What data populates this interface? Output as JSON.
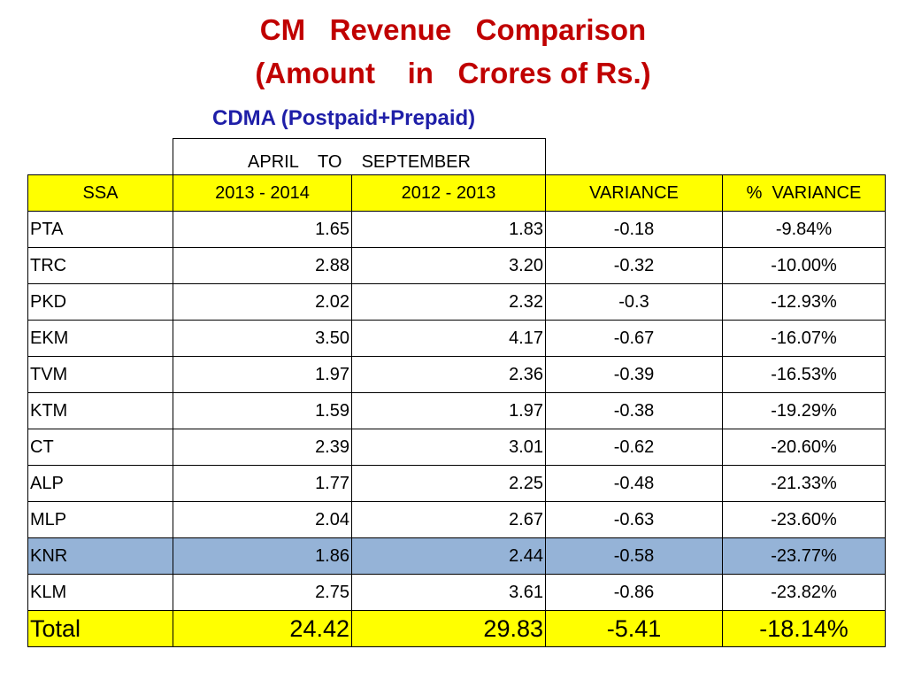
{
  "title": {
    "line1": "CM   Revenue   Comparison",
    "line2": "(Amount    in   Crores of Rs.)"
  },
  "subtitle": "CDMA (Postpaid+Prepaid)",
  "table": {
    "period_label": "APRIL    TO    SEPTEMBER",
    "headers": {
      "ssa": "SSA",
      "y1": "2013 - 2014",
      "y2": "2012 - 2013",
      "variance": "VARIANCE",
      "pct_variance": "%  VARIANCE"
    },
    "rows": [
      {
        "ssa": "PTA",
        "y1": "1.65",
        "y2": "1.83",
        "variance": "-0.18",
        "pct": "-9.84%"
      },
      {
        "ssa": "TRC",
        "y1": "2.88",
        "y2": "3.20",
        "variance": "-0.32",
        "pct": "-10.00%"
      },
      {
        "ssa": "PKD",
        "y1": "2.02",
        "y2": "2.32",
        "variance": "-0.3",
        "pct": "-12.93%"
      },
      {
        "ssa": "EKM",
        "y1": "3.50",
        "y2": "4.17",
        "variance": "-0.67",
        "pct": "-16.07%"
      },
      {
        "ssa": "TVM",
        "y1": "1.97",
        "y2": "2.36",
        "variance": "-0.39",
        "pct": "-16.53%"
      },
      {
        "ssa": "KTM",
        "y1": "1.59",
        "y2": "1.97",
        "variance": "-0.38",
        "pct": "-19.29%"
      },
      {
        "ssa": "CT",
        "y1": "2.39",
        "y2": "3.01",
        "variance": "-0.62",
        "pct": "-20.60%"
      },
      {
        "ssa": "ALP",
        "y1": "1.77",
        "y2": "2.25",
        "variance": "-0.48",
        "pct": "-21.33%"
      },
      {
        "ssa": "MLP",
        "y1": "2.04",
        "y2": "2.67",
        "variance": "-0.63",
        "pct": "-23.60%"
      },
      {
        "ssa": "KNR",
        "y1": "1.86",
        "y2": "2.44",
        "variance": "-0.58",
        "pct": "-23.77%"
      },
      {
        "ssa": "KLM",
        "y1": "2.75",
        "y2": "3.61",
        "variance": "-0.86",
        "pct": "-23.82%"
      }
    ],
    "total": {
      "ssa": "Total",
      "y1": "24.42",
      "y2": "29.83",
      "variance": "-5.41",
      "pct": "-18.14%"
    }
  },
  "colors": {
    "title": "#c00000",
    "subtitle": "#1f1fa8",
    "header_fill": "#ffff00",
    "highlight_row": "#95b3d7"
  }
}
